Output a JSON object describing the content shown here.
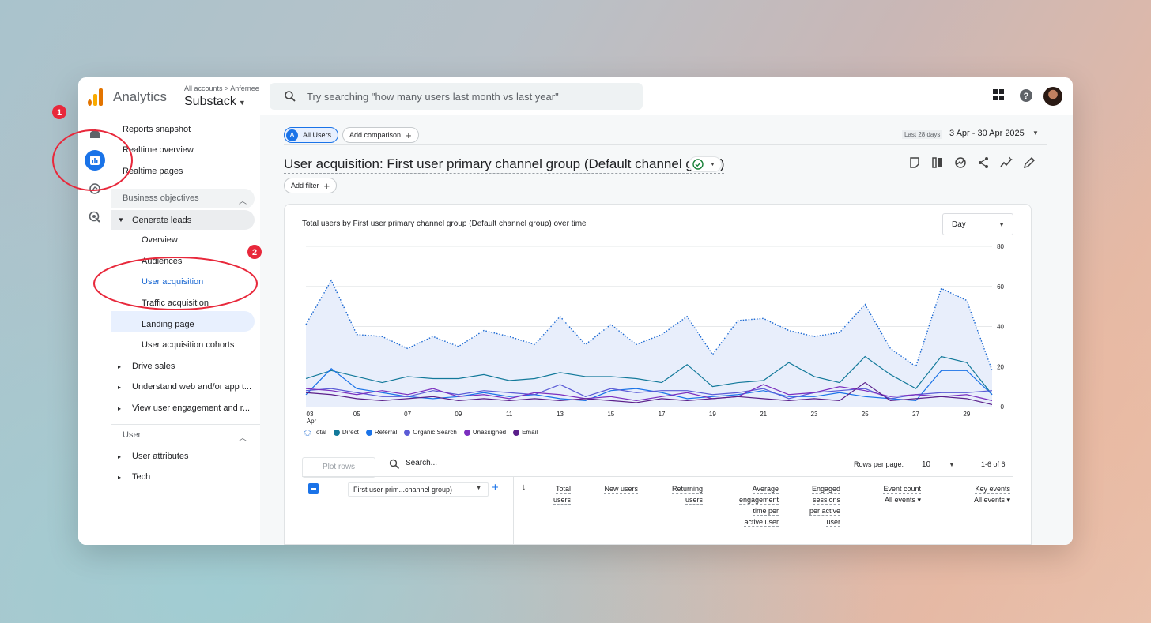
{
  "app": {
    "name": "Analytics",
    "account_crumb": "All accounts > Anfernee",
    "property": "Substack",
    "search_placeholder": "Try searching \"how many users last month vs last year\""
  },
  "sidebar": {
    "top_items": [
      "Reports snapshot",
      "Realtime overview",
      "Realtime pages"
    ],
    "section_business": "Business objectives",
    "generate_leads": "Generate leads",
    "leads_children": [
      "Overview",
      "Audiences",
      "User acquisition",
      "Traffic acquisition",
      "Landing page",
      "User acquisition cohorts"
    ],
    "more_groups": [
      "Drive sales",
      "Understand web and/or app t...",
      "View user engagement and r..."
    ],
    "section_user": "User",
    "user_groups": [
      "User attributes",
      "Tech"
    ]
  },
  "annotations": [
    "1",
    "2"
  ],
  "toolbar": {
    "all_users": "All Users",
    "all_users_badge": "A",
    "add_comparison": "Add comparison",
    "date_label": "Last 28 days",
    "date_range": "3 Apr - 30 Apr 2025",
    "add_filter": "Add filter"
  },
  "report": {
    "title": "User acquisition: First user primary channel group (Default channel group)"
  },
  "chart_data": {
    "type": "line",
    "title": "Total users by First user primary channel group (Default channel group) over time",
    "granularity": "Day",
    "x": [
      "03",
      "04",
      "05",
      "06",
      "07",
      "08",
      "09",
      "10",
      "11",
      "12",
      "13",
      "14",
      "15",
      "16",
      "17",
      "18",
      "19",
      "20",
      "21",
      "22",
      "23",
      "24",
      "25",
      "26",
      "27",
      "28",
      "29",
      "30"
    ],
    "x_tick_labels": [
      "03",
      "05",
      "07",
      "09",
      "11",
      "13",
      "15",
      "17",
      "19",
      "21",
      "23",
      "25",
      "27",
      "29"
    ],
    "x_first_sublabel": "Apr",
    "y_ticks": [
      0,
      20,
      40,
      60,
      80
    ],
    "ylim": [
      0,
      80
    ],
    "series": [
      {
        "name": "Total",
        "color": "#1a73e8",
        "style": "dotted-area",
        "values": [
          41,
          63,
          36,
          35,
          29,
          35,
          30,
          38,
          35,
          31,
          45,
          31,
          41,
          31,
          36,
          45,
          26,
          43,
          44,
          38,
          35,
          37,
          51,
          29,
          20,
          59,
          53,
          18
        ]
      },
      {
        "name": "Direct",
        "color": "#12799a",
        "values": [
          14,
          18,
          15,
          12,
          15,
          14,
          14,
          16,
          13,
          14,
          17,
          15,
          15,
          14,
          12,
          21,
          10,
          12,
          13,
          22,
          15,
          12,
          25,
          16,
          9,
          25,
          22,
          6
        ]
      },
      {
        "name": "Referral",
        "color": "#1a73e8",
        "values": [
          6,
          19,
          9,
          7,
          5,
          4,
          5,
          7,
          5,
          6,
          4,
          3,
          8,
          9,
          7,
          4,
          5,
          6,
          8,
          5,
          5,
          7,
          5,
          4,
          3,
          18,
          18,
          6
        ]
      },
      {
        "name": "Organic Search",
        "color": "#5b5bd6",
        "values": [
          8,
          9,
          7,
          5,
          5,
          8,
          6,
          8,
          7,
          6,
          11,
          5,
          9,
          7,
          8,
          8,
          6,
          7,
          9,
          4,
          7,
          8,
          9,
          4,
          6,
          7,
          7,
          8
        ]
      },
      {
        "name": "Unassigned",
        "color": "#7b2fbf",
        "values": [
          9,
          8,
          6,
          8,
          6,
          9,
          5,
          6,
          4,
          7,
          6,
          4,
          5,
          3,
          5,
          7,
          4,
          5,
          11,
          6,
          7,
          10,
          8,
          5,
          6,
          5,
          6,
          3
        ]
      },
      {
        "name": "Email",
        "color": "#5a1f8a",
        "values": [
          7,
          6,
          4,
          3,
          4,
          5,
          3,
          4,
          3,
          4,
          3,
          4,
          3,
          2,
          4,
          3,
          4,
          5,
          4,
          3,
          4,
          3,
          12,
          3,
          4,
          5,
          4,
          1
        ]
      }
    ]
  },
  "table": {
    "plot_rows": "Plot rows",
    "search_placeholder": "Search...",
    "rows_per_page_label": "Rows per page:",
    "rows_per_page": "10",
    "range": "1-6 of 6",
    "dimension": "First user prim...channel group)",
    "columns": [
      {
        "lines": [
          "Total",
          "users"
        ]
      },
      {
        "lines": [
          "New users"
        ]
      },
      {
        "lines": [
          "Returning",
          "users"
        ]
      },
      {
        "lines": [
          "Average",
          "engagement",
          "time per",
          "active user"
        ]
      },
      {
        "lines": [
          "Engaged",
          "sessions",
          "per active",
          "user"
        ]
      },
      {
        "lines": [
          "Event count"
        ],
        "sub": "All events"
      },
      {
        "lines": [
          "Key events"
        ],
        "sub": "All events"
      }
    ]
  }
}
